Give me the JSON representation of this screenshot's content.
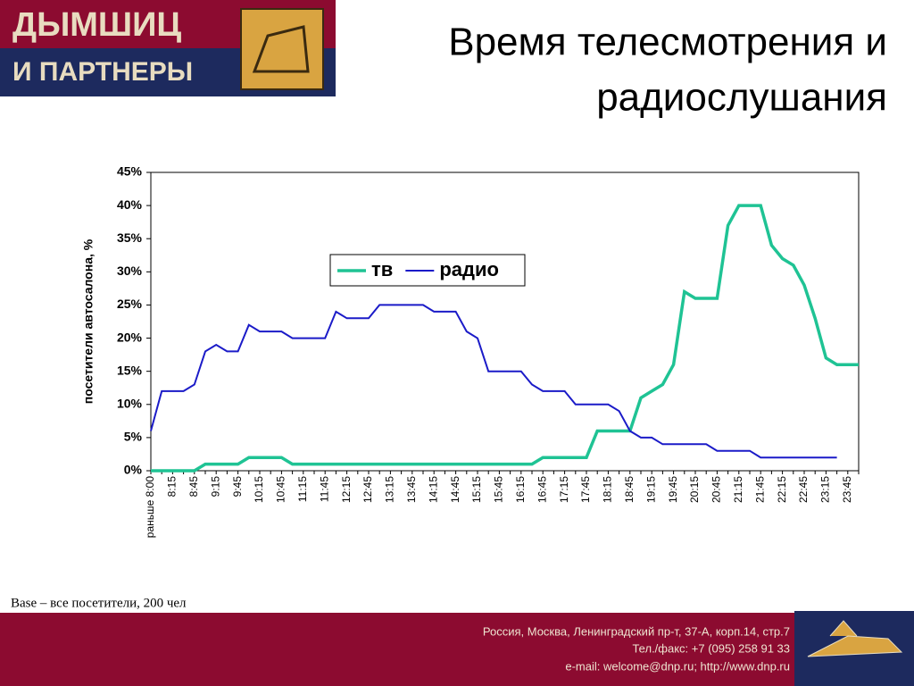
{
  "header": {
    "logo_line1": "ДЫМШИЦ",
    "logo_line2": "И ПАРТНЕРЫ",
    "title_lines": [
      "Время телесмотрения и",
      "радиослушания"
    ]
  },
  "note": "Base – все посетители, 200 чел",
  "footer": {
    "lines": [
      "Россия, Москва, Ленинградский пр-т, 37-А, корп.14, стр.7",
      "Тел./факс: +7 (095) 258 91 33",
      "e-mail: welcome@dnp.ru; http://www.dnp.ru"
    ]
  },
  "chart_data": {
    "type": "line",
    "y_label": "посетители автосалона, %",
    "categories": [
      "раньше 8:00",
      null,
      "8:15",
      null,
      "8:45",
      null,
      "9:15",
      null,
      "9:45",
      null,
      "10:15",
      null,
      "10:45",
      null,
      "11:15",
      null,
      "11:45",
      null,
      "12:15",
      null,
      "12:45",
      null,
      "13:15",
      null,
      "13:45",
      null,
      "14:15",
      null,
      "14:45",
      null,
      "15:15",
      null,
      "15:45",
      null,
      "16:15",
      null,
      "16:45",
      null,
      "17:15",
      null,
      "17:45",
      null,
      "18:15",
      null,
      "18:45",
      null,
      "19:15",
      null,
      "19:45",
      null,
      "20:15",
      null,
      "20:45",
      null,
      "21:15",
      null,
      "21:45",
      null,
      "22:15",
      null,
      "22:45",
      null,
      "23:15",
      null,
      "23:45",
      null
    ],
    "series": [
      {
        "name": "тв",
        "color": "#1fc394",
        "values": [
          0,
          0,
          0,
          0,
          0,
          1,
          1,
          1,
          1,
          2,
          2,
          2,
          2,
          1,
          1,
          1,
          1,
          1,
          1,
          1,
          1,
          1,
          1,
          1,
          1,
          1,
          1,
          1,
          1,
          1,
          1,
          1,
          1,
          1,
          1,
          1,
          2,
          2,
          2,
          2,
          2,
          6,
          6,
          6,
          6,
          11,
          12,
          13,
          16,
          27,
          26,
          26,
          26,
          37,
          40,
          40,
          40,
          34,
          32,
          31,
          28,
          23,
          17,
          16,
          16,
          16
        ]
      },
      {
        "name": "радио",
        "color": "#1b1bc8",
        "values": [
          6,
          12,
          12,
          12,
          13,
          18,
          19,
          18,
          18,
          22,
          21,
          21,
          21,
          20,
          20,
          20,
          20,
          24,
          23,
          23,
          23,
          25,
          25,
          25,
          25,
          25,
          24,
          24,
          24,
          21,
          20,
          15,
          15,
          15,
          15,
          13,
          12,
          12,
          12,
          10,
          10,
          10,
          10,
          9,
          6,
          5,
          5,
          4,
          4,
          4,
          4,
          4,
          3,
          3,
          3,
          3,
          2,
          2,
          2,
          2,
          2,
          2,
          2,
          2,
          null,
          null
        ]
      }
    ],
    "ylim": [
      0,
      45
    ],
    "yticks": [
      {
        "value": 0,
        "label": "0%"
      },
      {
        "value": 5,
        "label": "5%"
      },
      {
        "value": 10,
        "label": "10%"
      },
      {
        "value": 15,
        "label": "15%"
      },
      {
        "value": 20,
        "label": "20%"
      },
      {
        "value": 25,
        "label": "25%"
      },
      {
        "value": 30,
        "label": "30%"
      },
      {
        "value": 35,
        "label": "35%"
      },
      {
        "value": 40,
        "label": "40%"
      },
      {
        "value": 45,
        "label": "45%"
      }
    ],
    "grid": false,
    "legend": "center"
  }
}
